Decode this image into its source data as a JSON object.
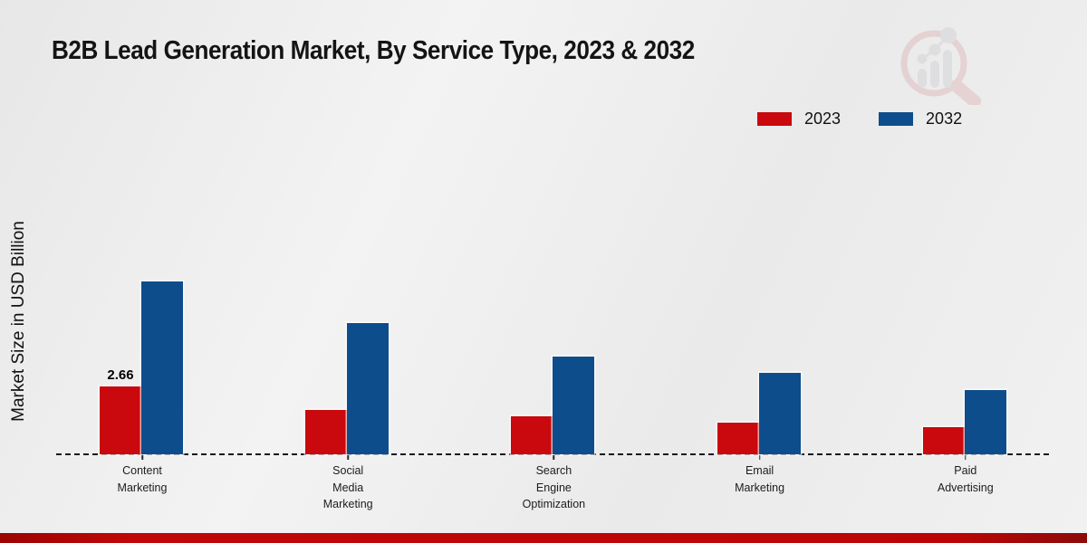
{
  "chart_data": {
    "type": "bar",
    "title": "B2B Lead Generation Market, By Service Type, 2023 & 2032",
    "ylabel": "Market Size in USD Billion",
    "xlabel": "",
    "categories": [
      "Content Marketing",
      "Social Media Marketing",
      "Search Engine Optimization",
      "Email Marketing",
      "Paid Advertising"
    ],
    "series": [
      {
        "name": "2023",
        "color": "#c9090d",
        "values": [
          2.66,
          1.73,
          1.49,
          1.25,
          1.06
        ]
      },
      {
        "name": "2032",
        "color": "#0e4d8c",
        "values": [
          6.78,
          5.15,
          3.83,
          3.2,
          2.5
        ]
      }
    ],
    "annotations": [
      {
        "series": "2023",
        "category": "Content Marketing",
        "text": "2.66"
      }
    ],
    "ylim": [
      0,
      7.5
    ],
    "grid": false,
    "legend_position": "top-right",
    "baseline_style": "dashed",
    "units": "USD Billion"
  },
  "watermark": {
    "name": "market-research-logo"
  },
  "footer": {
    "accent_color": "#bb0505"
  }
}
